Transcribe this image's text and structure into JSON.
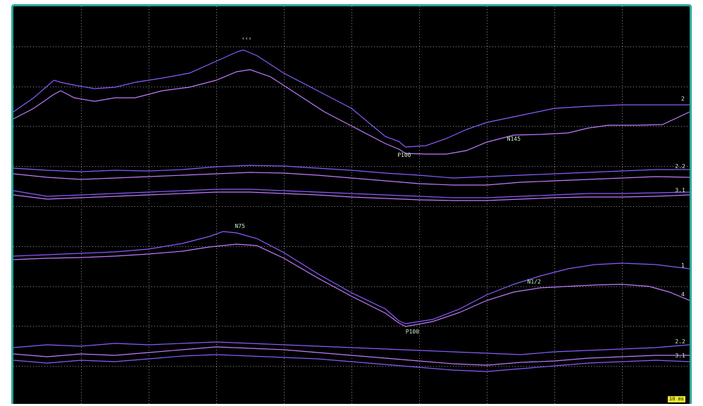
{
  "chart_data": {
    "type": "line",
    "title": "",
    "xlabel": "",
    "ylabel": "",
    "grid": true,
    "background": "#000000",
    "frame_color": "#2aa79b",
    "colors": {
      "grid": "#8a8a8a",
      "trace_a": "#8a5cff",
      "trace_b": "#c07bff",
      "label": "#c7f0c7"
    },
    "traces": [
      {
        "name": "",
        "baseline": 150,
        "points": [
          [
            0,
            0
          ],
          [
            3,
            -20
          ],
          [
            6,
            -45
          ],
          [
            7,
            -42
          ],
          [
            9,
            -38
          ],
          [
            12,
            -33
          ],
          [
            15,
            -35
          ],
          [
            18,
            -42
          ],
          [
            22,
            -48
          ],
          [
            26,
            -55
          ],
          [
            30,
            -72
          ],
          [
            33,
            -85
          ],
          [
            34,
            -88
          ],
          [
            36,
            -80
          ],
          [
            40,
            -55
          ],
          [
            45,
            -30
          ],
          [
            50,
            -5
          ],
          [
            55,
            35
          ],
          [
            57,
            42
          ],
          [
            58,
            50
          ],
          [
            61,
            48
          ],
          [
            64,
            38
          ],
          [
            67,
            25
          ],
          [
            70,
            15
          ],
          [
            75,
            5
          ],
          [
            80,
            -5
          ],
          [
            85,
            -8
          ],
          [
            90,
            -10
          ],
          [
            95,
            -10
          ],
          [
            100,
            -10
          ]
        ]
      },
      {
        "name": "",
        "baseline": 165,
        "points": [
          [
            0,
            -5
          ],
          [
            3,
            -20
          ],
          [
            6,
            -40
          ],
          [
            7,
            -45
          ],
          [
            9,
            -35
          ],
          [
            12,
            -30
          ],
          [
            15,
            -35
          ],
          [
            18,
            -35
          ],
          [
            22,
            -45
          ],
          [
            26,
            -50
          ],
          [
            30,
            -60
          ],
          [
            33,
            -72
          ],
          [
            35,
            -75
          ],
          [
            38,
            -65
          ],
          [
            42,
            -40
          ],
          [
            46,
            -15
          ],
          [
            50,
            5
          ],
          [
            55,
            30
          ],
          [
            57,
            38
          ],
          [
            58,
            44
          ],
          [
            61,
            45
          ],
          [
            64,
            45
          ],
          [
            67,
            40
          ],
          [
            70,
            28
          ],
          [
            74,
            18
          ],
          [
            78,
            17
          ],
          [
            82,
            15
          ],
          [
            85,
            8
          ],
          [
            88,
            4
          ],
          [
            92,
            4
          ],
          [
            96,
            3
          ],
          [
            100,
            -15
          ]
        ]
      },
      {
        "name": "",
        "baseline": 230,
        "points": [
          [
            0,
            0
          ],
          [
            5,
            3
          ],
          [
            10,
            5
          ],
          [
            15,
            3
          ],
          [
            20,
            4
          ],
          [
            25,
            2
          ],
          [
            30,
            -2
          ],
          [
            35,
            -4
          ],
          [
            40,
            -3
          ],
          [
            45,
            0
          ],
          [
            50,
            3
          ],
          [
            55,
            7
          ],
          [
            60,
            10
          ],
          [
            65,
            14
          ],
          [
            70,
            12
          ],
          [
            75,
            10
          ],
          [
            80,
            8
          ],
          [
            85,
            6
          ],
          [
            90,
            4
          ],
          [
            95,
            2
          ],
          [
            100,
            2
          ]
        ]
      },
      {
        "name": "",
        "baseline": 238,
        "points": [
          [
            0,
            0
          ],
          [
            5,
            5
          ],
          [
            10,
            8
          ],
          [
            15,
            6
          ],
          [
            20,
            4
          ],
          [
            25,
            2
          ],
          [
            30,
            0
          ],
          [
            35,
            -2
          ],
          [
            40,
            -1
          ],
          [
            45,
            2
          ],
          [
            50,
            6
          ],
          [
            55,
            10
          ],
          [
            60,
            14
          ],
          [
            65,
            16
          ],
          [
            70,
            16
          ],
          [
            75,
            12
          ],
          [
            80,
            10
          ],
          [
            85,
            8
          ],
          [
            90,
            6
          ],
          [
            95,
            4
          ],
          [
            100,
            5
          ]
        ]
      },
      {
        "name": "",
        "baseline": 262,
        "points": [
          [
            0,
            0
          ],
          [
            5,
            8
          ],
          [
            10,
            6
          ],
          [
            15,
            4
          ],
          [
            20,
            2
          ],
          [
            25,
            0
          ],
          [
            30,
            -2
          ],
          [
            35,
            -2
          ],
          [
            40,
            0
          ],
          [
            45,
            2
          ],
          [
            50,
            4
          ],
          [
            55,
            6
          ],
          [
            60,
            8
          ],
          [
            65,
            10
          ],
          [
            70,
            10
          ],
          [
            75,
            8
          ],
          [
            80,
            6
          ],
          [
            85,
            4
          ],
          [
            90,
            4
          ],
          [
            95,
            3
          ],
          [
            100,
            2
          ]
        ]
      },
      {
        "name": "",
        "baseline": 268,
        "points": [
          [
            0,
            0
          ],
          [
            5,
            6
          ],
          [
            10,
            4
          ],
          [
            15,
            2
          ],
          [
            20,
            0
          ],
          [
            25,
            -2
          ],
          [
            30,
            -4
          ],
          [
            35,
            -4
          ],
          [
            40,
            -2
          ],
          [
            45,
            0
          ],
          [
            50,
            3
          ],
          [
            55,
            5
          ],
          [
            60,
            7
          ],
          [
            65,
            8
          ],
          [
            70,
            8
          ],
          [
            75,
            6
          ],
          [
            80,
            4
          ],
          [
            85,
            3
          ],
          [
            90,
            3
          ],
          [
            95,
            2
          ],
          [
            100,
            0
          ]
        ]
      },
      {
        "name": "",
        "baseline": 355,
        "points": [
          [
            0,
            0
          ],
          [
            5,
            -2
          ],
          [
            10,
            -4
          ],
          [
            15,
            -6
          ],
          [
            20,
            -10
          ],
          [
            25,
            -18
          ],
          [
            29,
            -28
          ],
          [
            31,
            -35
          ],
          [
            33,
            -33
          ],
          [
            36,
            -25
          ],
          [
            40,
            -5
          ],
          [
            45,
            25
          ],
          [
            50,
            52
          ],
          [
            55,
            75
          ],
          [
            57,
            92
          ],
          [
            58,
            96
          ],
          [
            62,
            90
          ],
          [
            66,
            75
          ],
          [
            70,
            55
          ],
          [
            74,
            40
          ],
          [
            78,
            28
          ],
          [
            82,
            18
          ],
          [
            86,
            12
          ],
          [
            90,
            10
          ],
          [
            95,
            12
          ],
          [
            100,
            18
          ]
        ]
      },
      {
        "name": "",
        "baseline": 360,
        "points": [
          [
            0,
            0
          ],
          [
            5,
            -2
          ],
          [
            10,
            -3
          ],
          [
            15,
            -5
          ],
          [
            20,
            -8
          ],
          [
            25,
            -12
          ],
          [
            29,
            -18
          ],
          [
            31,
            -20
          ],
          [
            33,
            -22
          ],
          [
            36,
            -20
          ],
          [
            40,
            -2
          ],
          [
            45,
            26
          ],
          [
            50,
            52
          ],
          [
            55,
            76
          ],
          [
            57,
            90
          ],
          [
            58,
            95
          ],
          [
            62,
            88
          ],
          [
            66,
            75
          ],
          [
            70,
            58
          ],
          [
            74,
            46
          ],
          [
            78,
            40
          ],
          [
            82,
            38
          ],
          [
            86,
            36
          ],
          [
            90,
            35
          ],
          [
            94,
            38
          ],
          [
            97,
            46
          ],
          [
            100,
            58
          ]
        ]
      },
      {
        "name": "",
        "baseline": 485,
        "points": [
          [
            0,
            0
          ],
          [
            5,
            -4
          ],
          [
            10,
            -2
          ],
          [
            15,
            -6
          ],
          [
            20,
            -4
          ],
          [
            25,
            -6
          ],
          [
            30,
            -8
          ],
          [
            35,
            -6
          ],
          [
            40,
            -4
          ],
          [
            45,
            -2
          ],
          [
            50,
            0
          ],
          [
            55,
            2
          ],
          [
            60,
            4
          ],
          [
            65,
            6
          ],
          [
            70,
            8
          ],
          [
            75,
            10
          ],
          [
            80,
            6
          ],
          [
            85,
            4
          ],
          [
            90,
            2
          ],
          [
            95,
            0
          ],
          [
            100,
            -4
          ]
        ]
      },
      {
        "name": "",
        "baseline": 490,
        "points": [
          [
            0,
            4
          ],
          [
            5,
            8
          ],
          [
            10,
            4
          ],
          [
            15,
            6
          ],
          [
            20,
            2
          ],
          [
            25,
            -2
          ],
          [
            30,
            -6
          ],
          [
            35,
            -4
          ],
          [
            40,
            -2
          ],
          [
            45,
            2
          ],
          [
            50,
            6
          ],
          [
            55,
            10
          ],
          [
            60,
            14
          ],
          [
            65,
            18
          ],
          [
            70,
            20
          ],
          [
            75,
            16
          ],
          [
            80,
            14
          ],
          [
            85,
            10
          ],
          [
            90,
            8
          ],
          [
            95,
            6
          ],
          [
            100,
            6
          ]
        ]
      },
      {
        "name": "",
        "baseline": 495,
        "points": [
          [
            0,
            8
          ],
          [
            5,
            12
          ],
          [
            10,
            8
          ],
          [
            15,
            10
          ],
          [
            20,
            6
          ],
          [
            25,
            2
          ],
          [
            30,
            0
          ],
          [
            35,
            2
          ],
          [
            40,
            4
          ],
          [
            45,
            6
          ],
          [
            50,
            10
          ],
          [
            55,
            14
          ],
          [
            60,
            18
          ],
          [
            65,
            22
          ],
          [
            70,
            24
          ],
          [
            75,
            20
          ],
          [
            80,
            16
          ],
          [
            85,
            12
          ],
          [
            90,
            10
          ],
          [
            95,
            8
          ],
          [
            100,
            10
          ]
        ]
      }
    ],
    "annotations": [
      {
        "text": "‹‹‹",
        "x": 34.5,
        "y": -102,
        "trace": 0
      },
      {
        "text": "P100",
        "x": 57.8,
        "y": 64,
        "trace": 0
      },
      {
        "text": "N145",
        "x": 74,
        "y": 26,
        "trace": 1
      },
      {
        "text": "2",
        "x": 99,
        "y": -16,
        "trace": 0
      },
      {
        "text": "P100",
        "x": 59,
        "y": 110,
        "trace": 6
      },
      {
        "text": "N1/2",
        "x": 77,
        "y": 34,
        "trace": 7
      },
      {
        "text": "N75",
        "x": 33.5,
        "y": -40,
        "trace": 6
      },
      {
        "text": "1",
        "x": 99,
        "y": 16,
        "trace": 6
      },
      {
        "text": "4",
        "x": 99,
        "y": 52,
        "trace": 7
      },
      {
        "text": "2.2",
        "x": 98.6,
        "y": 0,
        "trace": 2
      },
      {
        "text": "3.1",
        "x": 98.6,
        "y": 2,
        "trace": 4
      },
      {
        "text": "2.2",
        "x": 98.6,
        "y": -6,
        "trace": 8
      },
      {
        "text": "3.1",
        "x": 98.6,
        "y": 4,
        "trace": 10
      }
    ],
    "corner_tag": "10 ms"
  }
}
